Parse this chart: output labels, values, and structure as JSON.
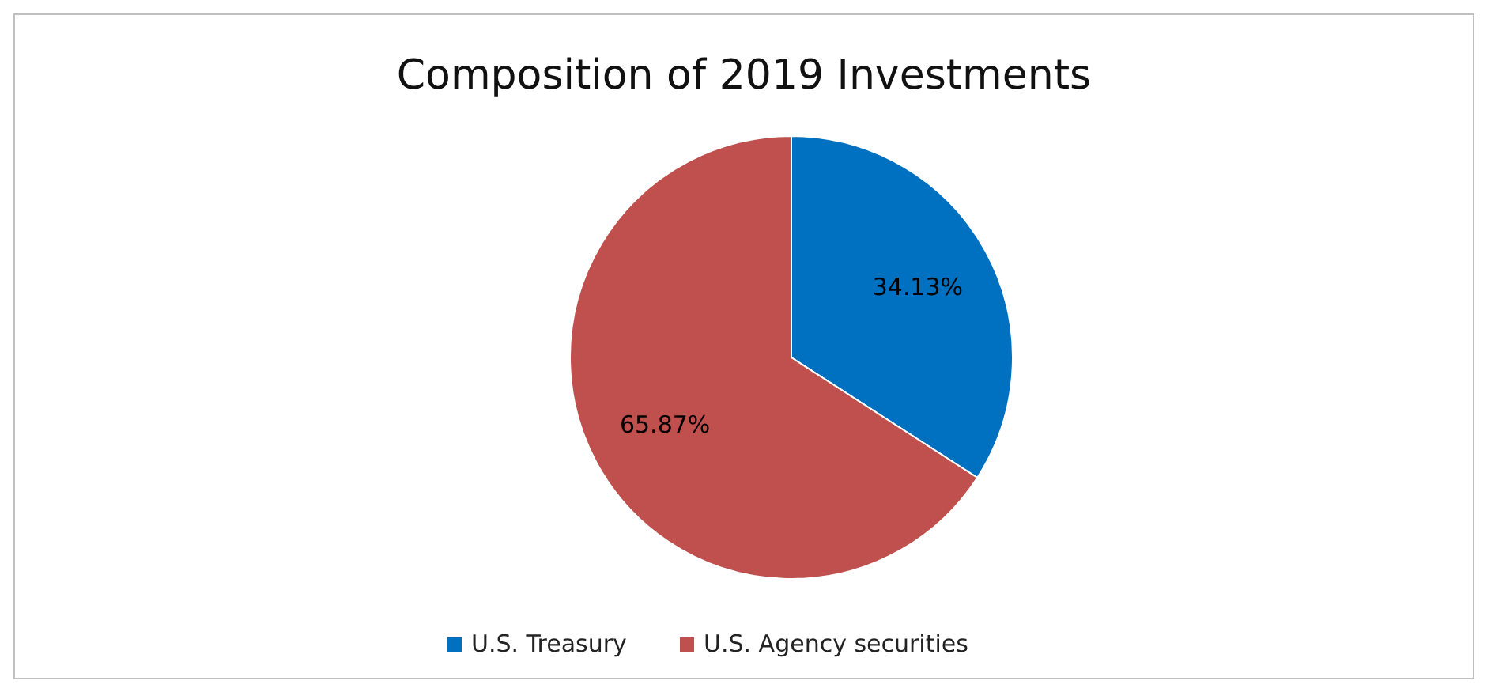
{
  "chart_data": {
    "type": "pie",
    "title": "Composition of 2019 Investments",
    "categories": [
      "U.S. Treasury",
      "U.S. Agency securities"
    ],
    "values": [
      34.13,
      65.87
    ],
    "colors": [
      "#0070c0",
      "#c0504d"
    ],
    "value_labels": [
      "34.13%",
      "65.87%"
    ],
    "legend": "bottom"
  }
}
